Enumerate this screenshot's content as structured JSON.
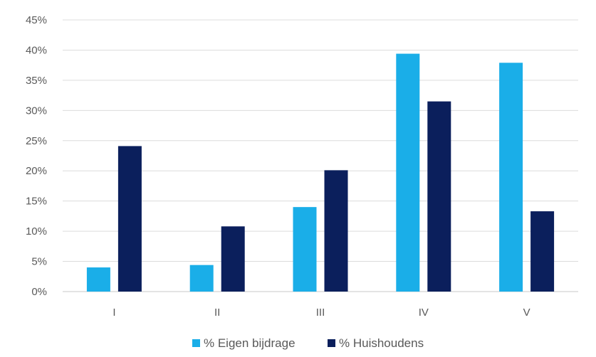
{
  "chart_data": {
    "type": "bar",
    "categories": [
      "I",
      "II",
      "III",
      "IV",
      "V"
    ],
    "series": [
      {
        "name": "% Eigen bijdrage",
        "values": [
          4,
          4.4,
          14,
          39.4,
          37.9
        ],
        "color": "#1aaee8"
      },
      {
        "name": "% Huishoudens",
        "values": [
          24.1,
          10.8,
          20.1,
          31.5,
          13.3
        ],
        "color": "#0b1f5c"
      }
    ],
    "y_ticks": [
      "0%",
      "5%",
      "10%",
      "15%",
      "20%",
      "25%",
      "30%",
      "35%",
      "40%",
      "45%"
    ],
    "ylim": [
      0,
      45
    ],
    "grid": true,
    "legend_position": "bottom"
  }
}
